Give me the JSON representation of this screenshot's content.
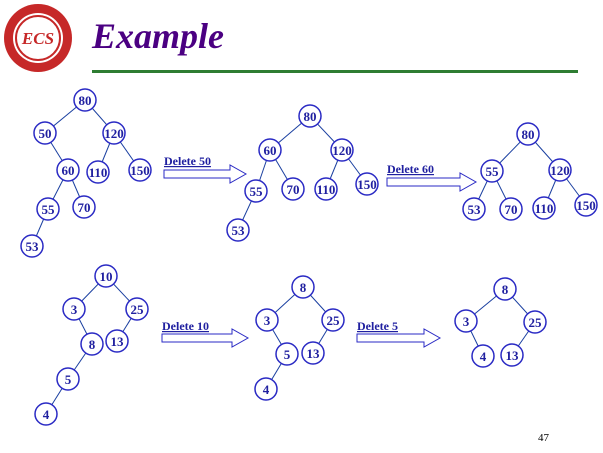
{
  "slide": {
    "title": "Example",
    "page_number": "47",
    "accent_color": "#4b0082",
    "rule_color": "#2e7d32",
    "node_stroke": "#2a2ac4",
    "logo_text": "ECS",
    "operations": [
      "Delete 50",
      "Delete 60",
      "Delete 10",
      "Delete 5"
    ]
  },
  "trees": [
    {
      "nodes": [
        "80",
        "50",
        "120",
        "60",
        "110",
        "150",
        "55",
        "70",
        "53"
      ]
    },
    {
      "nodes": [
        "80",
        "60",
        "120",
        "55",
        "70",
        "110",
        "150",
        "53"
      ]
    },
    {
      "nodes": [
        "80",
        "55",
        "120",
        "53",
        "70",
        "110",
        "150"
      ]
    },
    {
      "nodes": [
        "10",
        "3",
        "25",
        "8",
        "13",
        "5",
        "4"
      ]
    },
    {
      "nodes": [
        "8",
        "3",
        "25",
        "5",
        "13",
        "4"
      ]
    },
    {
      "nodes": [
        "8",
        "3",
        "25",
        "4",
        "13"
      ]
    }
  ]
}
